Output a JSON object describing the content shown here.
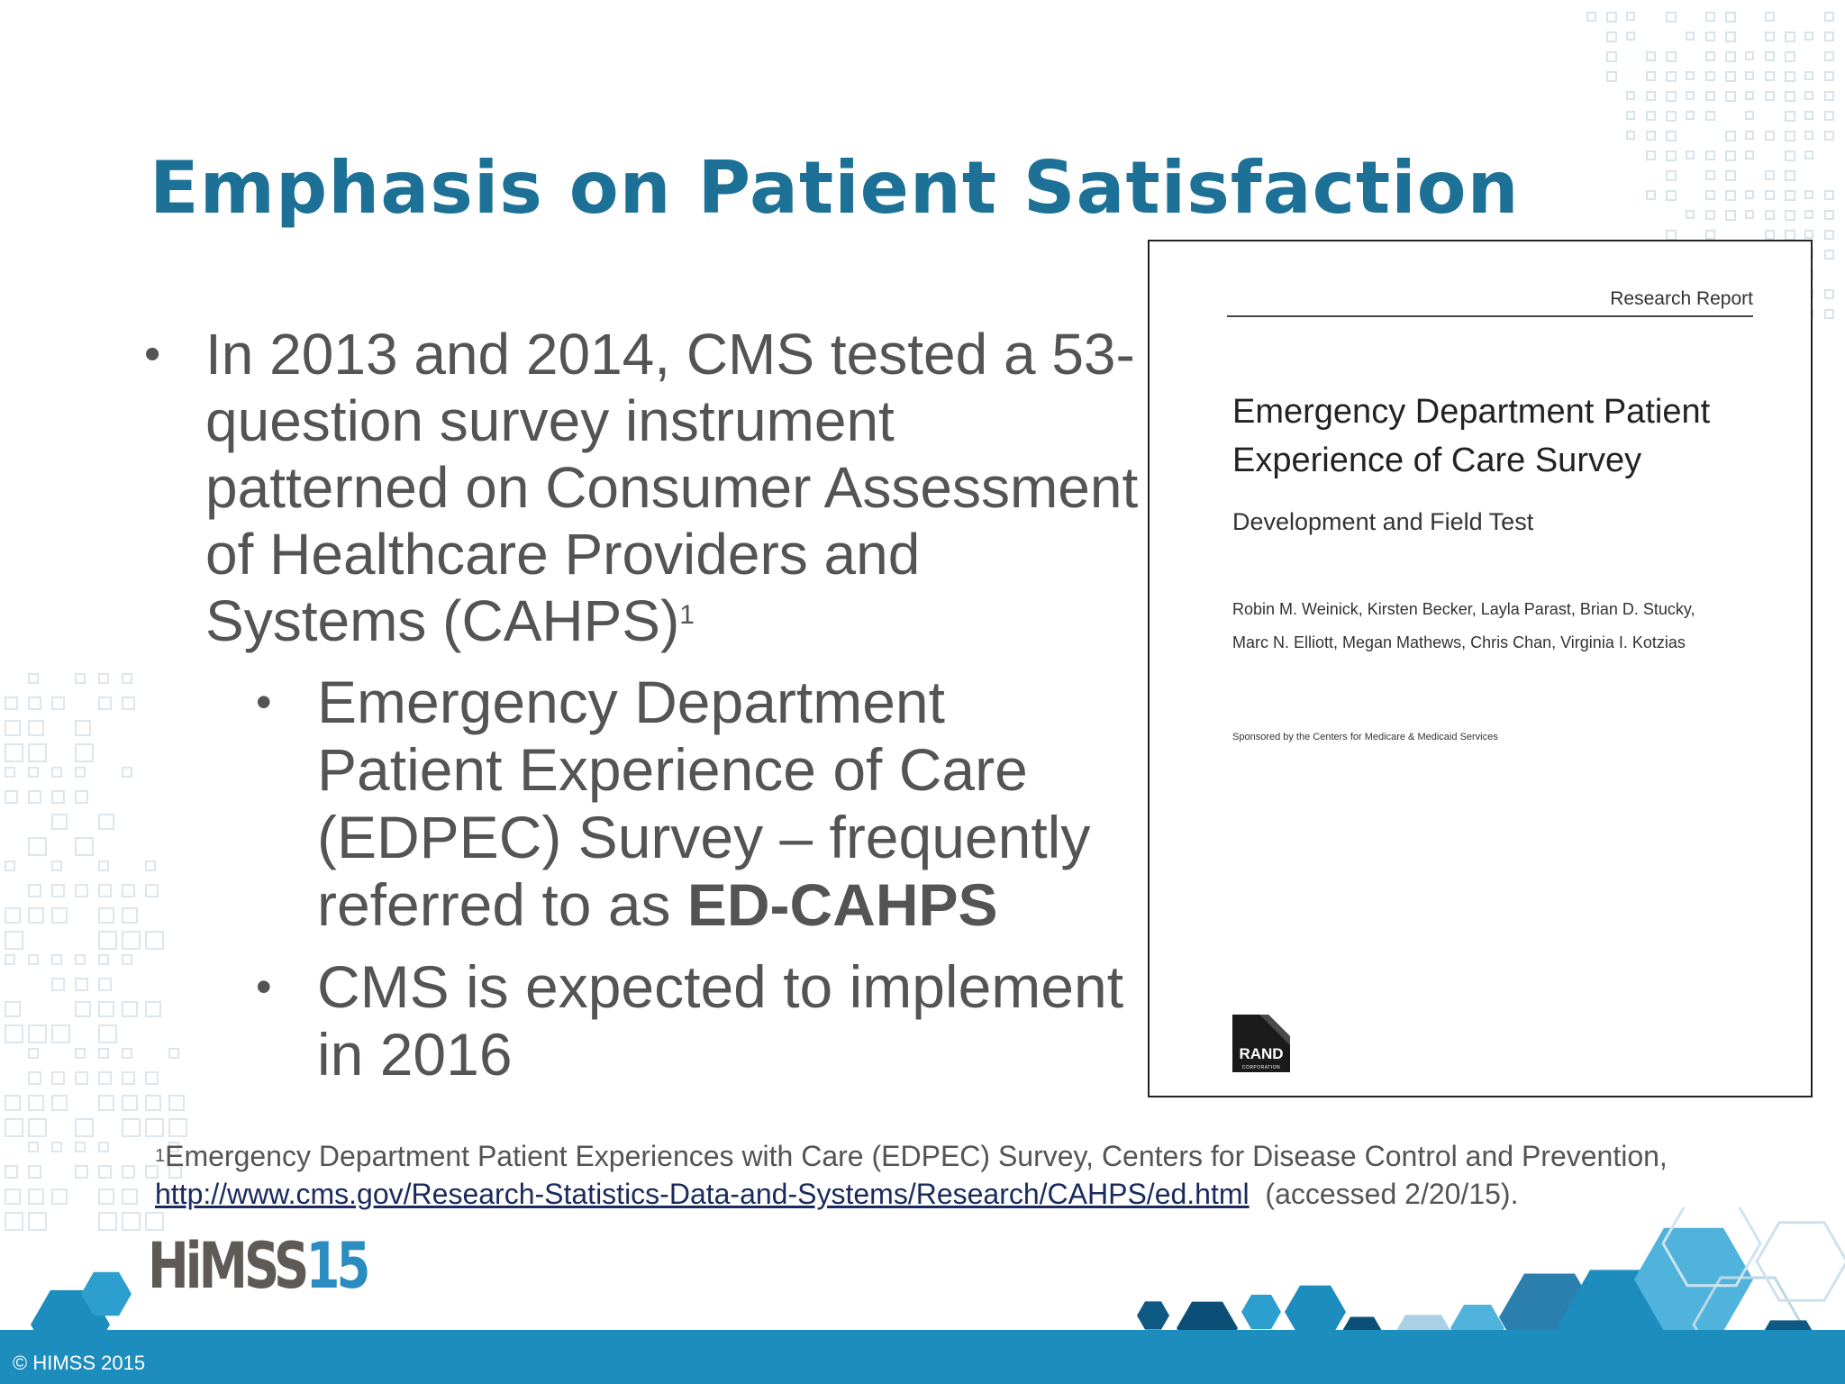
{
  "slide": {
    "title": "Emphasis on Patient Satisfaction",
    "bullet1": {
      "text": "In 2013 and 2014, CMS tested a 53-question survey instrument patterned on Consumer Assessment of Healthcare Providers and Systems (CAHPS)",
      "note": "1"
    },
    "subbullets": [
      {
        "text_before": "Emergency Department Patient Experience of Care (EDPEC) Survey – frequently referred to as ",
        "text_bold": "ED-CAHPS"
      },
      {
        "text": "CMS is expected to implement in 2016"
      }
    ],
    "bullet_glyph": "•"
  },
  "report_cover": {
    "label": "Research Report",
    "title": "Emergency Department Patient Experience of Care Survey",
    "subtitle": "Development and Field Test",
    "authors_line1": "Robin M. Weinick, Kirsten Becker, Layla Parast, Brian D. Stucky,",
    "authors_line2": "Marc N. Elliott, Megan Mathews, Chris Chan, Virginia I. Kotzias",
    "sponsor": "Sponsored by the Centers for Medicare & Medicaid Services",
    "logo_text": "RAND",
    "logo_sub": "CORPORATION"
  },
  "footnote": {
    "marker": "1",
    "text": "Emergency Department Patient Experiences with Care (EDPEC) Survey, Centers for Disease Control and Prevention,",
    "link": "http://www.cms.gov/Research-Statistics-Data-and-Systems/Research/CAHPS/ed.html",
    "accessed": "(accessed 2/20/15)."
  },
  "branding": {
    "logo_word": "HiMSS",
    "logo_num": "15",
    "copyright": "© HIMSS 2015"
  },
  "colors": {
    "title": "#1d7196",
    "body": "#545454",
    "band": "#1c8dbd"
  }
}
